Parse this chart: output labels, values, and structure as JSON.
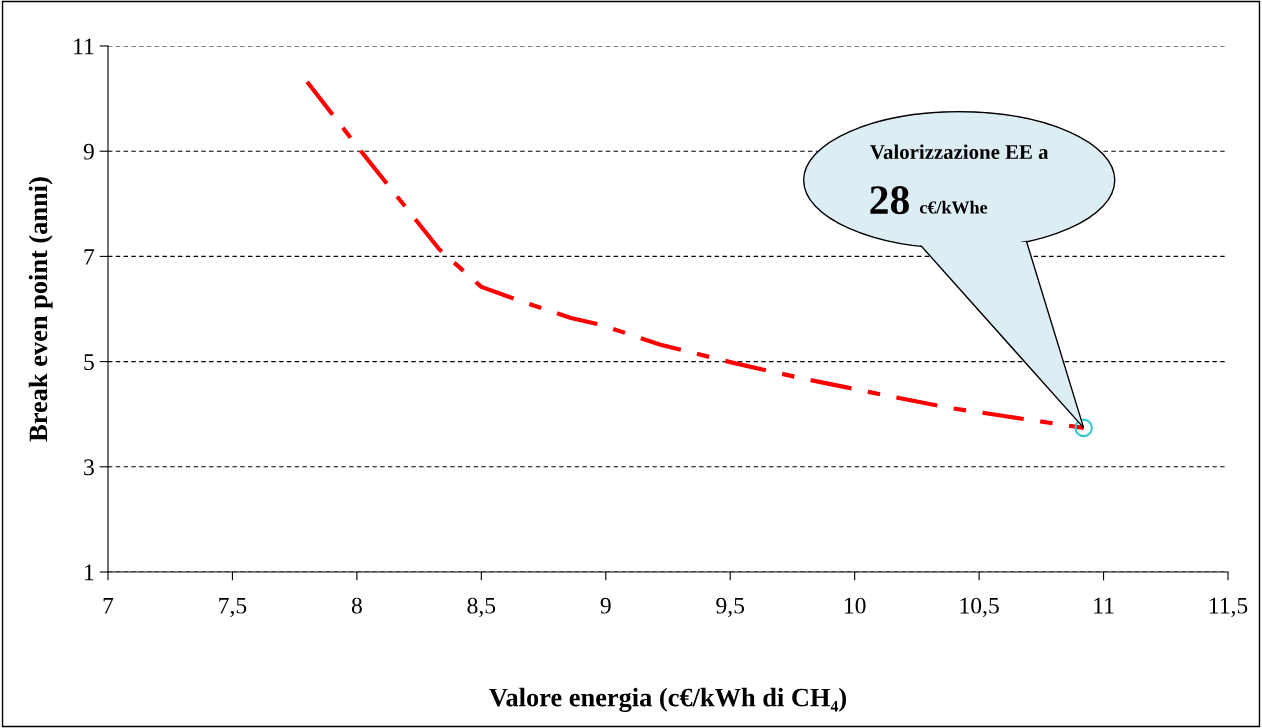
{
  "chart_data": {
    "type": "line",
    "xlabel": "Valore energia (c€/kWh di CH₄)",
    "ylabel": "Break even point (anni)",
    "xlim": [
      7,
      11.5
    ],
    "xticks": [
      7,
      {
        "value": 7.5,
        "label": "7,5"
      },
      8,
      {
        "value": 8.5,
        "label": "8,5"
      },
      9,
      {
        "value": 9.5,
        "label": "9,5"
      },
      10,
      {
        "value": 10.5,
        "label": "10,5"
      },
      11,
      {
        "value": 11.5,
        "label": "11,5"
      }
    ],
    "ylim": [
      1,
      11
    ],
    "yticks": [
      1,
      3,
      5,
      7,
      9,
      11
    ],
    "grid": "y",
    "legend": false,
    "marker": "none",
    "line_style": "dashed",
    "series": [
      {
        "color": "#ff0000",
        "x": [
          7.8,
          8.01,
          8.33,
          8.5,
          8.67,
          8.86,
          8.98,
          9.22,
          9.5,
          9.78,
          10.06,
          10.38,
          10.58,
          10.92
        ],
        "values": [
          10.32,
          9.04,
          7.14,
          6.42,
          6.13,
          5.83,
          5.7,
          5.32,
          4.99,
          4.69,
          4.42,
          4.12,
          3.98,
          3.74
        ]
      },
      {
        "type": "scatter",
        "marker": "circle",
        "color": "#33cccc",
        "x": [
          10.92
        ],
        "values": [
          3.74
        ]
      }
    ],
    "annotations": [
      "Valorizzazione EE a",
      "28",
      "c€/kWhe"
    ]
  }
}
